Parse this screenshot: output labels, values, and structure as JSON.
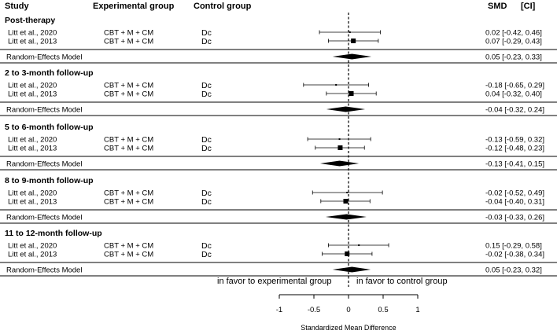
{
  "chart_data": {
    "type": "forest",
    "headers": {
      "study": "Study",
      "experimental": "Experimental group",
      "control": "Control group",
      "smd": "SMD",
      "ci": "[CI]"
    },
    "sections": [
      {
        "title": "Post-therapy",
        "studies": [
          {
            "study": "Litt et al., 2020",
            "experimental": "CBT + M + CM",
            "control": "Dc",
            "smd": 0.02,
            "lo": -0.42,
            "hi": 0.46,
            "label": "0.02 [-0.42, 0.46]"
          },
          {
            "study": "Litt et al., 2013",
            "experimental": "CBT + M + CM",
            "control": "Dc",
            "smd": 0.07,
            "lo": -0.29,
            "hi": 0.43,
            "label": "0.07 [-0.29, 0.43]"
          }
        ],
        "summary": {
          "label_text": "Random-Effects Model",
          "smd": 0.05,
          "lo": -0.23,
          "hi": 0.33,
          "label": "0.05 [-0.23, 0.33]"
        }
      },
      {
        "title": "2 to 3-month follow-up",
        "studies": [
          {
            "study": "Litt et al., 2020",
            "experimental": "CBT + M + CM",
            "control": "Dc",
            "smd": -0.18,
            "lo": -0.65,
            "hi": 0.29,
            "label": "-0.18 [-0.65, 0.29]"
          },
          {
            "study": "Litt et al., 2013",
            "experimental": "CBT + M + CM",
            "control": "Dc",
            "smd": 0.04,
            "lo": -0.32,
            "hi": 0.4,
            "label": "0.04 [-0.32, 0.40]"
          }
        ],
        "summary": {
          "label_text": "Random-Effects Model",
          "smd": -0.04,
          "lo": -0.32,
          "hi": 0.24,
          "label": "-0.04 [-0.32, 0.24]"
        }
      },
      {
        "title": "5 to 6-month follow-up",
        "studies": [
          {
            "study": "Litt et al., 2020",
            "experimental": "CBT + M + CM",
            "control": "Dc",
            "smd": -0.13,
            "lo": -0.59,
            "hi": 0.32,
            "label": "-0.13 [-0.59, 0.32]"
          },
          {
            "study": "Litt et al., 2013",
            "experimental": "CBT + M + CM",
            "control": "Dc",
            "smd": -0.12,
            "lo": -0.48,
            "hi": 0.23,
            "label": "-0.12 [-0.48, 0.23]"
          }
        ],
        "summary": {
          "label_text": "Random-Effects Model",
          "smd": -0.13,
          "lo": -0.41,
          "hi": 0.15,
          "label": "-0.13 [-0.41, 0.15]"
        }
      },
      {
        "title": "8 to 9-month follow-up",
        "studies": [
          {
            "study": "Litt et al., 2020",
            "experimental": "CBT + M + CM",
            "control": "Dc",
            "smd": -0.02,
            "lo": -0.52,
            "hi": 0.49,
            "label": "-0.02 [-0.52, 0.49]"
          },
          {
            "study": "Litt et al., 2013",
            "experimental": "CBT + M + CM",
            "control": "Dc",
            "smd": -0.04,
            "lo": -0.4,
            "hi": 0.31,
            "label": "-0.04 [-0.40, 0.31]"
          }
        ],
        "summary": {
          "label_text": "Random-Effects Model",
          "smd": -0.03,
          "lo": -0.33,
          "hi": 0.26,
          "label": "-0.03 [-0.33, 0.26]"
        }
      },
      {
        "title": "11 to 12-month follow-up",
        "studies": [
          {
            "study": "Litt et al., 2020",
            "experimental": "CBT + M + CM",
            "control": "Dc",
            "smd": 0.15,
            "lo": -0.29,
            "hi": 0.58,
            "label": "0.15 [-0.29, 0.58]"
          },
          {
            "study": "Litt et al., 2013",
            "experimental": "CBT + M + CM",
            "control": "Dc",
            "smd": -0.02,
            "lo": -0.38,
            "hi": 0.34,
            "label": "-0.02 [-0.38, 0.34]"
          }
        ],
        "summary": {
          "label_text": "Random-Effects Model",
          "smd": 0.05,
          "lo": -0.23,
          "hi": 0.32,
          "label": "0.05 [-0.23, 0.32]"
        }
      }
    ],
    "favor_left": "in favor to experimental group",
    "favor_right": "in favor to control group",
    "x_ticks": [
      -1,
      -0.5,
      0,
      0.5,
      1
    ],
    "x_tick_labels": [
      "-1",
      "-0.5",
      "0",
      "0.5",
      "1"
    ],
    "xlabel": "Standardized Mean Difference",
    "xlim": [
      -1,
      1
    ],
    "reference_line": 0,
    "colors": {
      "ink": "#000000",
      "background": "#ffffff"
    }
  }
}
